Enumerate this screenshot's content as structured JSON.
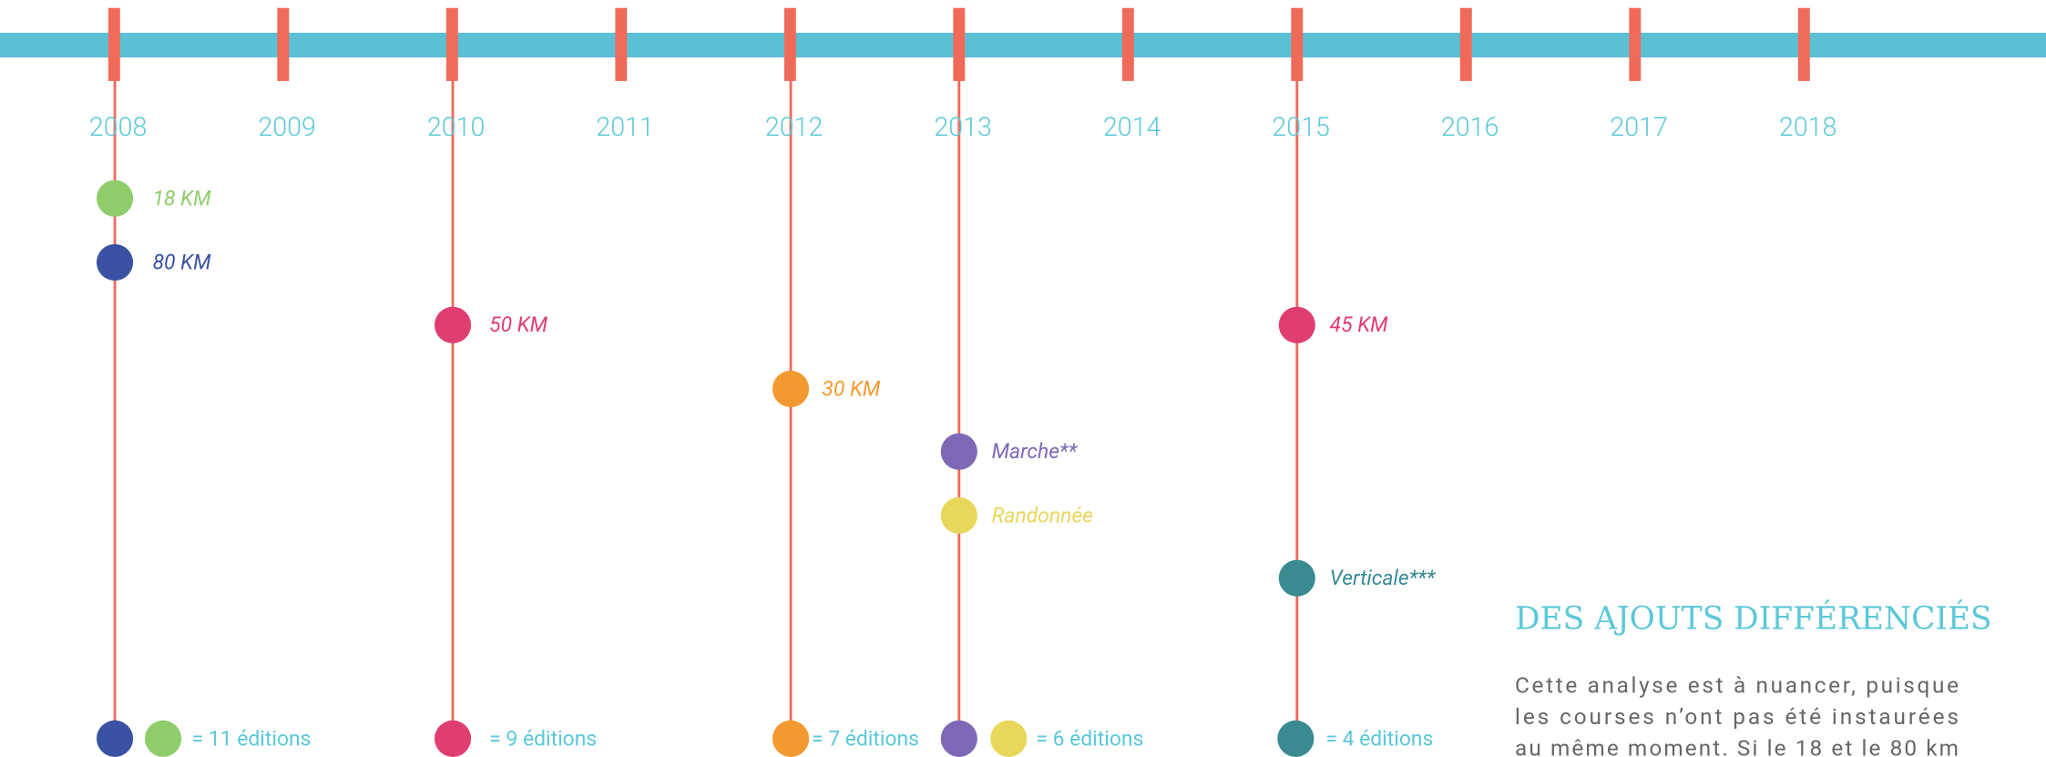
{
  "years": [
    "2008",
    "2009",
    "2010",
    "2011",
    "2012",
    "2013",
    "2014",
    "2015",
    "2016",
    "2017",
    "2018"
  ],
  "events": {
    "e18": "18 KM",
    "e80": "80 KM",
    "e50": "50 KM",
    "e30": "30 KM",
    "marche": "Marche**",
    "rando": "Randonnée",
    "e45": "45 KM",
    "verticale": "Verticale***"
  },
  "totals": [
    "= 11 éditions",
    "= 9 éditions",
    "= 7 éditions",
    "= 6 éditions",
    "= 4 éditions"
  ],
  "sidebar": {
    "title": "DES AJOUTS DIFFÉRENCIÉS",
    "lines": [
      "Cette analyse est à nuancer, puisque",
      "les courses n’ont pas été instaurées",
      "au même moment. Si le 18 et le 80 km"
    ]
  }
}
